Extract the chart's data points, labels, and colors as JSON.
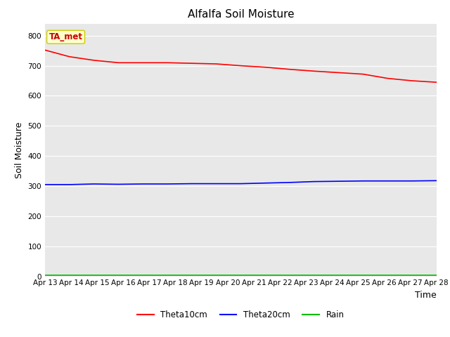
{
  "title": "Alfalfa Soil Moisture",
  "xlabel": "Time",
  "ylabel": "Soil Moisture",
  "annotation_text": "TA_met",
  "legend_labels": [
    "Theta10cm",
    "Theta20cm",
    "Rain"
  ],
  "legend_colors": [
    "#ff0000",
    "#0000ff",
    "#00bb00"
  ],
  "x_tick_labels": [
    "Apr 13",
    "Apr 14",
    "Apr 15",
    "Apr 16",
    "Apr 17",
    "Apr 18",
    "Apr 19",
    "Apr 20",
    "Apr 21",
    "Apr 22",
    "Apr 23",
    "Apr 24",
    "Apr 25",
    "Apr 26",
    "Apr 27",
    "Apr 28"
  ],
  "ylim": [
    0,
    840
  ],
  "yticks": [
    0,
    100,
    200,
    300,
    400,
    500,
    600,
    700,
    800
  ],
  "theta10cm": [
    752,
    730,
    718,
    710,
    710,
    710,
    708,
    706,
    700,
    695,
    688,
    682,
    677,
    672,
    658,
    650,
    645
  ],
  "theta20cm": [
    305,
    305,
    307,
    306,
    307,
    307,
    308,
    308,
    308,
    310,
    312,
    315,
    316,
    317,
    317,
    317,
    318
  ],
  "rain": [
    3,
    3,
    3,
    3,
    3,
    3,
    3,
    3,
    3,
    3,
    3,
    3,
    3,
    3,
    3,
    3,
    3
  ],
  "bg_color": "#e8e8e8",
  "line_color_theta10": "#ff0000",
  "line_color_theta20": "#0000ff",
  "line_color_rain": "#00bb00",
  "annotation_bg": "#ffffcc",
  "annotation_border": "#cccc00",
  "annotation_text_color": "#cc0000",
  "title_fontsize": 11,
  "axis_label_fontsize": 9,
  "tick_fontsize": 7.5
}
